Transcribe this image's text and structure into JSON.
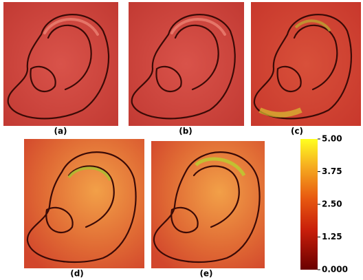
{
  "panels": [
    {
      "label": "(a)"
    },
    {
      "label": "(b)"
    },
    {
      "label": "(c)"
    },
    {
      "label": "(d)"
    },
    {
      "label": "(e)"
    }
  ],
  "colorbar": {
    "lim": [
      0,
      5
    ],
    "ticks": [
      {
        "value": 0,
        "label": "0.000"
      },
      {
        "value": 1.25,
        "label": "1.25"
      },
      {
        "value": 2.5,
        "label": "2.50"
      },
      {
        "value": 3.75,
        "label": "3.75"
      },
      {
        "value": 5,
        "label": "5.00"
      }
    ]
  }
}
